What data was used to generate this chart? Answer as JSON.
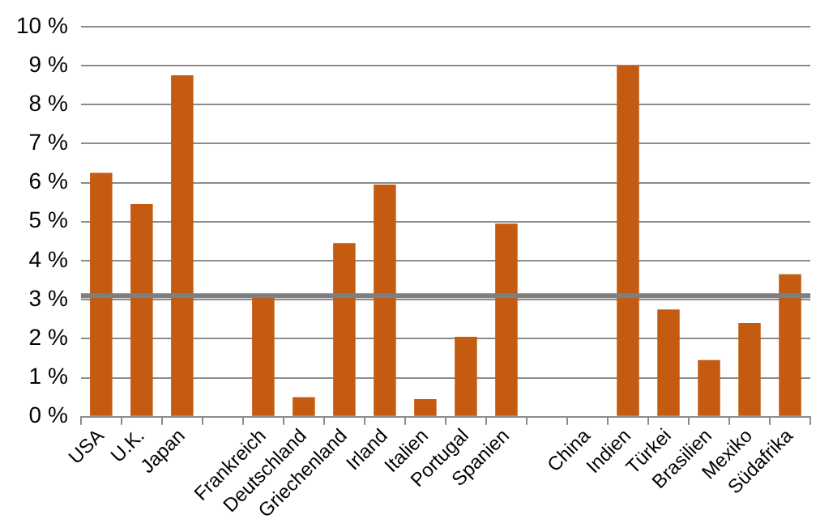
{
  "chart_data": {
    "type": "bar",
    "categories": [
      "USA",
      "U.K.",
      "Japan",
      null,
      "Frankreich",
      "Deutschland",
      "Griechenland",
      "Irland",
      "Italien",
      "Portugal",
      "Spanien",
      null,
      "China",
      "Indien",
      "Türkei",
      "Brasilien",
      "Mexiko",
      "Südafrika"
    ],
    "values": [
      6.25,
      5.45,
      8.75,
      null,
      3.05,
      0.5,
      4.45,
      5.95,
      0.45,
      2.05,
      4.95,
      null,
      null,
      9.0,
      2.75,
      1.45,
      2.4,
      3.65
    ],
    "color": "#c55a11",
    "ylim": [
      0,
      10
    ],
    "yticks": [
      {
        "value": 0,
        "label": "0 %"
      },
      {
        "value": 1,
        "label": "1 %"
      },
      {
        "value": 2,
        "label": "2 %"
      },
      {
        "value": 3,
        "label": "3 %"
      },
      {
        "value": 4,
        "label": "4 %"
      },
      {
        "value": 5,
        "label": "5 %"
      },
      {
        "value": 6,
        "label": "6 %"
      },
      {
        "value": 7,
        "label": "7 %"
      },
      {
        "value": 8,
        "label": "8 %"
      },
      {
        "value": 9,
        "label": "9 %"
      },
      {
        "value": 10,
        "label": "10 %"
      }
    ],
    "ref_lines": [
      {
        "axis": "y",
        "value": 3.1,
        "color": "#7f7f7f"
      }
    ],
    "grid": "y"
  }
}
